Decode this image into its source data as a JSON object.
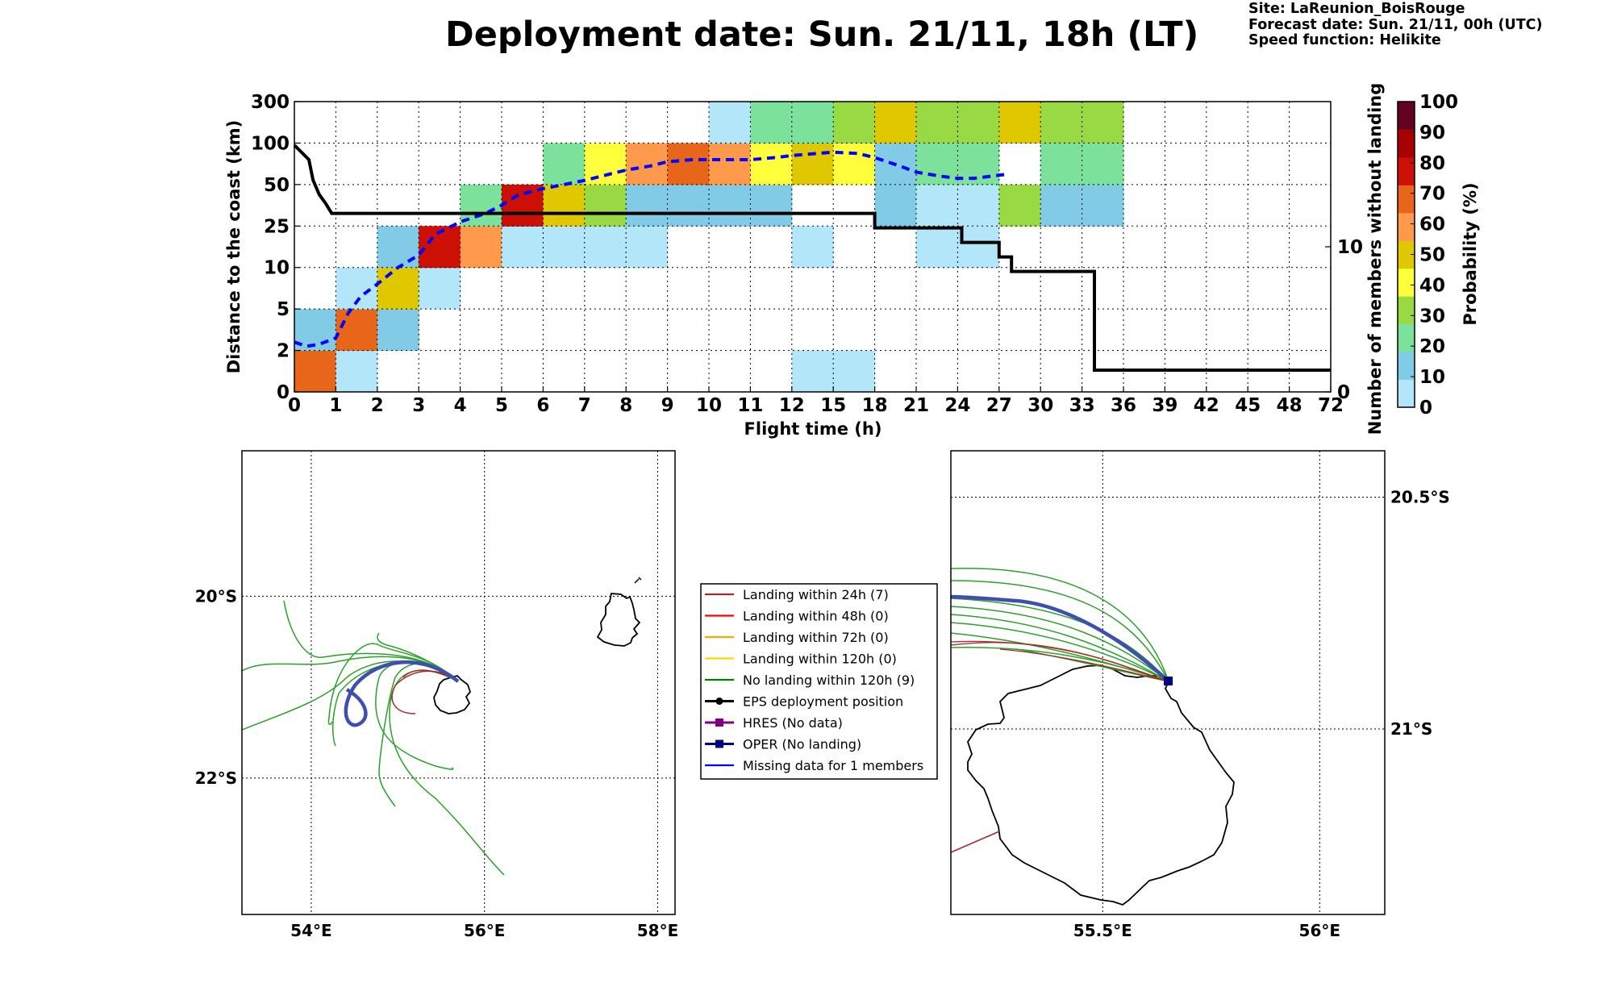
{
  "header": {
    "title": "Deployment date: Sun. 21/11, 18h (LT)",
    "site": "Site: LaReunion_BoisRouge",
    "forecast": "Forecast date: Sun. 21/11, 00h (UTC)",
    "speed": "Speed function: Helikite"
  },
  "chart_data": [
    {
      "type": "heatmap",
      "xlabel": "Flight time (h)",
      "ylabel": "Distance to the coast (km)",
      "y2label": "Number of members without landing",
      "x_ticks": [
        "0",
        "1",
        "2",
        "3",
        "4",
        "5",
        "6",
        "7",
        "8",
        "9",
        "10",
        "11",
        "12",
        "15",
        "18",
        "21",
        "24",
        "27",
        "30",
        "33",
        "36",
        "39",
        "42",
        "45",
        "48",
        "72"
      ],
      "y_ticks": [
        "0",
        "2",
        "5",
        "10",
        "25",
        "50",
        "100",
        "300"
      ],
      "y2_ticks": [
        "0",
        "10"
      ],
      "y2_range": [
        0,
        20
      ],
      "colorbar": {
        "label": "Probability (%)",
        "ticks": [
          "0",
          "10",
          "20",
          "30",
          "40",
          "50",
          "60",
          "70",
          "80",
          "90",
          "100"
        ],
        "colors": [
          "#b4e6fa",
          "#82cbe6",
          "#7ce29b",
          "#99d944",
          "#ffff3c",
          "#e0c800",
          "#ff9a4d",
          "#e8661a",
          "#cc1005",
          "#a60003",
          "#650021"
        ]
      },
      "grid": true,
      "cells": [
        {
          "t": 0,
          "d": 0,
          "p": 70
        },
        {
          "t": 0,
          "d": 1,
          "p": 10
        },
        {
          "t": 1,
          "d": 0,
          "p": 0
        },
        {
          "t": 1,
          "d": 1,
          "p": 70
        },
        {
          "t": 1,
          "d": 2,
          "p": 0
        },
        {
          "t": 2,
          "d": 1,
          "p": 10
        },
        {
          "t": 2,
          "d": 2,
          "p": 50
        },
        {
          "t": 2,
          "d": 3,
          "p": 10
        },
        {
          "t": 3,
          "d": 2,
          "p": 0
        },
        {
          "t": 3,
          "d": 3,
          "p": 80
        },
        {
          "t": 4,
          "d": 3,
          "p": 60
        },
        {
          "t": 4,
          "d": 4,
          "p": 20
        },
        {
          "t": 5,
          "d": 3,
          "p": 0
        },
        {
          "t": 5,
          "d": 4,
          "p": 80
        },
        {
          "t": 6,
          "d": 3,
          "p": 0
        },
        {
          "t": 6,
          "d": 4,
          "p": 50
        },
        {
          "t": 6,
          "d": 5,
          "p": 20
        },
        {
          "t": 7,
          "d": 3,
          "p": 0
        },
        {
          "t": 7,
          "d": 4,
          "p": 30
        },
        {
          "t": 7,
          "d": 5,
          "p": 40
        },
        {
          "t": 8,
          "d": 3,
          "p": 0
        },
        {
          "t": 8,
          "d": 4,
          "p": 10
        },
        {
          "t": 8,
          "d": 5,
          "p": 60
        },
        {
          "t": 9,
          "d": 4,
          "p": 10
        },
        {
          "t": 9,
          "d": 5,
          "p": 70
        },
        {
          "t": 10,
          "d": 4,
          "p": 10
        },
        {
          "t": 10,
          "d": 5,
          "p": 60
        },
        {
          "t": 10,
          "d": 6,
          "p": 0
        },
        {
          "t": 11,
          "d": 4,
          "p": 10
        },
        {
          "t": 11,
          "d": 5,
          "p": 40
        },
        {
          "t": 11,
          "d": 6,
          "p": 20
        },
        {
          "t": 12,
          "d": 0,
          "p": 0
        },
        {
          "t": 12,
          "d": 3,
          "p": 0
        },
        {
          "t": 12,
          "d": 5,
          "p": 50
        },
        {
          "t": 12,
          "d": 6,
          "p": 20
        },
        {
          "t": 13,
          "d": 0,
          "p": 0
        },
        {
          "t": 13,
          "d": 5,
          "p": 40
        },
        {
          "t": 13,
          "d": 6,
          "p": 30
        },
        {
          "t": 14,
          "d": 4,
          "p": 10
        },
        {
          "t": 14,
          "d": 5,
          "p": 10
        },
        {
          "t": 14,
          "d": 6,
          "p": 50
        },
        {
          "t": 15,
          "d": 3,
          "p": 0
        },
        {
          "t": 15,
          "d": 4,
          "p": 0
        },
        {
          "t": 15,
          "d": 5,
          "p": 20
        },
        {
          "t": 15,
          "d": 6,
          "p": 30
        },
        {
          "t": 16,
          "d": 3,
          "p": 0
        },
        {
          "t": 16,
          "d": 4,
          "p": 0
        },
        {
          "t": 16,
          "d": 5,
          "p": 20
        },
        {
          "t": 16,
          "d": 6,
          "p": 30
        },
        {
          "t": 17,
          "d": 4,
          "p": 30
        },
        {
          "t": 17,
          "d": 6,
          "p": 50
        },
        {
          "t": 18,
          "d": 4,
          "p": 10
        },
        {
          "t": 18,
          "d": 5,
          "p": 20
        },
        {
          "t": 18,
          "d": 6,
          "p": 30
        },
        {
          "t": 19,
          "d": 4,
          "p": 10
        },
        {
          "t": 19,
          "d": 5,
          "p": 20
        },
        {
          "t": 19,
          "d": 6,
          "p": 30
        }
      ],
      "series": [
        {
          "name": "",
          "style": "dashed",
          "color": "#0000ff",
          "x": [
            0,
            0.3,
            0.6,
            1,
            1.3,
            1.6,
            2,
            2.5,
            3,
            3.4,
            4,
            4.6,
            5,
            5.4,
            6,
            6.5,
            7,
            7.6,
            8,
            8.6,
            9,
            9.6,
            10,
            10.6,
            11,
            11.6,
            12,
            12.6,
            13,
            13.6,
            14,
            14.6,
            15,
            15.6,
            16,
            16.4,
            16.8,
            17.2
          ],
          "y": [
            1.2,
            1.1,
            1.15,
            1.3,
            1.9,
            2.3,
            2.6,
            3.0,
            3.3,
            3.8,
            4.1,
            4.3,
            4.5,
            4.75,
            4.9,
            5.0,
            5.1,
            5.25,
            5.35,
            5.45,
            5.55,
            5.6,
            5.6,
            5.6,
            5.6,
            5.65,
            5.7,
            5.75,
            5.78,
            5.75,
            5.65,
            5.45,
            5.3,
            5.2,
            5.15,
            5.15,
            5.2,
            5.25
          ]
        },
        {
          "name": "",
          "style": "solid",
          "color": "#000000",
          "axis": "y2",
          "steps": [
            [
              0,
              17
            ],
            [
              0.35,
              16
            ],
            [
              0.45,
              14.6
            ],
            [
              0.6,
              13.6
            ],
            [
              0.75,
              13
            ],
            [
              0.9,
              12.3
            ],
            [
              4.5,
              12.3
            ],
            [
              6,
              12.3
            ],
            [
              9,
              12.3
            ],
            [
              12,
              12.3
            ],
            [
              14,
              12.3
            ],
            [
              14,
              11.3
            ],
            [
              16.1,
              11.3
            ],
            [
              16.1,
              10.3
            ],
            [
              17,
              10.3
            ],
            [
              17,
              9.3
            ],
            [
              17.3,
              9.3
            ],
            [
              17.3,
              8.3
            ],
            [
              19.3,
              8.3
            ],
            [
              19.3,
              1.5
            ],
            [
              25,
              1.5
            ]
          ]
        }
      ]
    },
    {
      "type": "map",
      "name": "regional",
      "lon_ticks": [
        "54°E",
        "56°E",
        "58°E"
      ],
      "lat_ticks": [
        "20°S",
        "22°S"
      ],
      "lon_range": [
        53.2,
        58.2
      ],
      "lat_range": [
        -23.5,
        -18.4
      ]
    },
    {
      "type": "map",
      "name": "zoom",
      "lon_ticks": [
        "55.5°E",
        "56°E"
      ],
      "lat_ticks": [
        "20.5°S",
        "21°S"
      ],
      "lon_range": [
        55.15,
        56.15
      ],
      "lat_range": [
        -21.4,
        -20.4
      ]
    }
  ],
  "legend": {
    "items": [
      {
        "label": "Landing within 24h (7)",
        "color": "#a52a2a",
        "marker": "none"
      },
      {
        "label": "Landing within 48h (0)",
        "color": "#ff0000",
        "marker": "none"
      },
      {
        "label": "Landing within 72h (0)",
        "color": "#ffa500",
        "marker": "none"
      },
      {
        "label": "Landing within 120h (0)",
        "color": "#ffd700",
        "marker": "none"
      },
      {
        "label": "No landing within 120h (9)",
        "color": "#008000",
        "marker": "none"
      },
      {
        "label": "EPS deployment position",
        "color": "#000000",
        "marker": "circle"
      },
      {
        "label": "HRES (No data)",
        "color": "#800080",
        "marker": "square"
      },
      {
        "label": "OPER (No landing)",
        "color": "#000080",
        "marker": "square"
      },
      {
        "label": "Missing data for 1 members",
        "color": "#0000ff",
        "marker": "none"
      }
    ]
  }
}
